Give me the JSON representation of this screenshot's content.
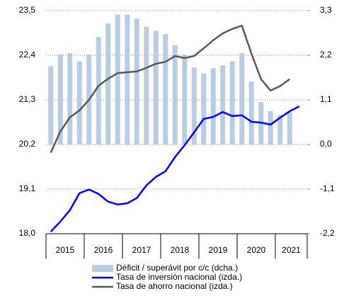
{
  "chart_data": {
    "type": "bar-line",
    "categories": [
      null,
      null,
      null,
      null,
      null,
      null,
      null,
      null,
      null,
      null,
      null,
      null,
      null,
      null,
      null,
      null,
      null,
      null,
      null,
      null,
      null,
      null,
      null,
      null,
      null,
      null,
      null
    ],
    "years": [
      "2015",
      "2016",
      "2017",
      "2018",
      "2019",
      "2020",
      "2021"
    ],
    "series": [
      {
        "name": "Déficit / superávit por c/c (dcha.)",
        "type": "bar",
        "axis": "y2",
        "color": "#b8cce4",
        "values": [
          1.93,
          2.22,
          2.25,
          2.05,
          2.22,
          2.65,
          2.98,
          3.2,
          3.2,
          3.1,
          2.9,
          2.8,
          2.72,
          2.45,
          2.22,
          1.9,
          1.75,
          1.88,
          1.95,
          2.05,
          2.25,
          1.55,
          1.05,
          0.82,
          0.72,
          0.8,
          null
        ]
      },
      {
        "name": "Tasa de inversión nacional (izda.)",
        "type": "line",
        "axis": "y",
        "color": "#0000ff",
        "values": [
          18.05,
          18.3,
          18.58,
          19.0,
          19.09,
          18.98,
          18.79,
          18.72,
          18.75,
          18.88,
          19.19,
          19.4,
          19.54,
          19.89,
          20.18,
          20.5,
          20.83,
          20.88,
          21.0,
          20.9,
          20.92,
          20.76,
          20.74,
          20.69,
          20.86,
          21.02,
          21.14
        ]
      },
      {
        "name": "Tasa de ahorro nacional (izda.)",
        "type": "line",
        "axis": "y",
        "color": "#595959",
        "values": [
          20.0,
          20.52,
          20.87,
          21.04,
          21.3,
          21.65,
          21.82,
          21.96,
          21.98,
          22.0,
          22.09,
          22.19,
          22.24,
          22.38,
          22.33,
          22.38,
          22.57,
          22.77,
          22.94,
          23.05,
          23.13,
          22.44,
          21.81,
          21.53,
          21.64,
          21.81,
          null
        ]
      }
    ],
    "ylim": [
      18.0,
      23.5
    ],
    "yticks": [
      {
        "value": 18.0,
        "label": "18,0"
      },
      {
        "value": 19.1,
        "label": "19,1"
      },
      {
        "value": 20.2,
        "label": "20,2"
      },
      {
        "value": 21.3,
        "label": "21,3"
      },
      {
        "value": 22.4,
        "label": "22,4"
      },
      {
        "value": 23.5,
        "label": "23,5"
      }
    ],
    "y2lim": [
      -2.2,
      3.3
    ],
    "y2ticks": [
      {
        "value": -2.2,
        "label": "-2,2"
      },
      {
        "value": -1.1,
        "label": "-1,1"
      },
      {
        "value": 0.0,
        "label": "0,0"
      },
      {
        "value": 1.1,
        "label": "1,1"
      },
      {
        "value": 2.2,
        "label": "2,2"
      },
      {
        "value": 3.3,
        "label": "3,3"
      }
    ],
    "grid": true,
    "legend": "bottom"
  }
}
